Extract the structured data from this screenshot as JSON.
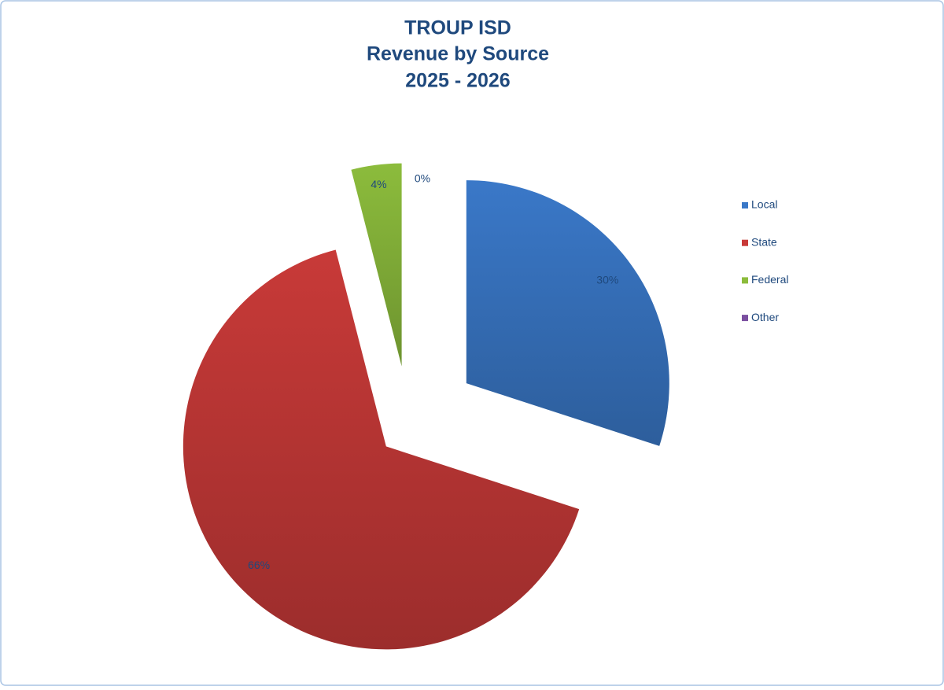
{
  "chart_data": {
    "type": "pie",
    "title": [
      "TROUP ISD",
      "Revenue by Source",
      "2025 - 2026"
    ],
    "categories": [
      "Local",
      "State",
      "Federal",
      "Other"
    ],
    "values": [
      30,
      66,
      4,
      0
    ],
    "value_labels": [
      "30%",
      "66%",
      "4%",
      "0%"
    ],
    "colors": [
      "#3a78c8",
      "#c83a38",
      "#8cbc3c",
      "#7b4fa0"
    ],
    "legend": "right"
  }
}
